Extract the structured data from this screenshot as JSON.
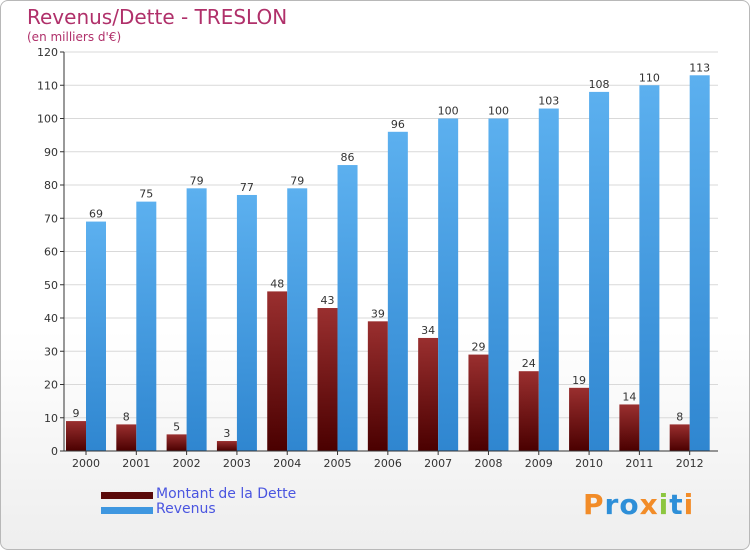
{
  "title": "Revenus/Dette - TRESLON",
  "subtitle": "(en milliers d'€)",
  "colors": {
    "title": "#b0306a",
    "legend_text": "#4a55e0",
    "debt_top": "#9a2f2f",
    "debt_bottom": "#4a0000",
    "revenue_top": "#5cb0ef",
    "revenue_bottom": "#2f86d0",
    "grid": "#d9d9d9",
    "axis": "#333333"
  },
  "logo": {
    "text": "Proxiti",
    "letter_colors": [
      "#f28c28",
      "#2e8fd8",
      "#2e8fd8",
      "#f28c28",
      "#8cc63f",
      "#2e8fd8",
      "#f28c28"
    ]
  },
  "chart_data": {
    "type": "bar",
    "title": "Revenus/Dette - TRESLON",
    "subtitle": "(en milliers d'€)",
    "categories": [
      "2000",
      "2001",
      "2002",
      "2003",
      "2004",
      "2005",
      "2006",
      "2007",
      "2008",
      "2009",
      "2010",
      "2011",
      "2012"
    ],
    "series": [
      {
        "name": "Montant de la Dette",
        "values": [
          9,
          8,
          5,
          3,
          48,
          43,
          39,
          34,
          29,
          24,
          19,
          14,
          8
        ]
      },
      {
        "name": "Revenus",
        "values": [
          69,
          75,
          79,
          77,
          79,
          86,
          96,
          100,
          100,
          103,
          108,
          110,
          113
        ]
      }
    ],
    "ylim": [
      0,
      120
    ],
    "yticks": [
      0,
      10,
      20,
      30,
      40,
      50,
      60,
      70,
      80,
      90,
      100,
      110,
      120
    ],
    "grid": true,
    "legend_position": "bottom-left"
  }
}
